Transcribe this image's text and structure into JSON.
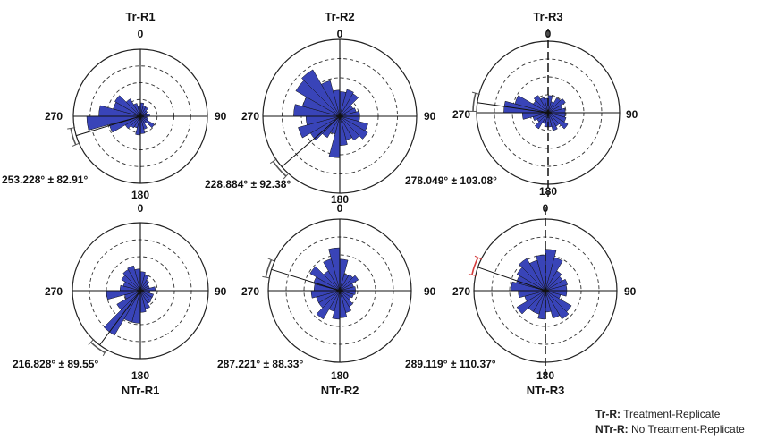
{
  "chart_data": [
    {
      "type": "rose",
      "title": "Tr-R1",
      "direction_labels": [
        "0",
        "90",
        "180",
        "270"
      ],
      "mean_label": "253.228° ± 82.91°",
      "mean_direction_deg": 253.228,
      "ci_deg": 82.91,
      "rmax": 5,
      "bin_width_deg": 15,
      "bin_starts_deg": [
        0,
        15,
        30,
        45,
        60,
        75,
        90,
        105,
        120,
        135,
        150,
        165,
        180,
        195,
        210,
        225,
        240,
        255,
        270,
        285,
        300,
        315,
        330,
        345
      ],
      "values": [
        1.0,
        0.8,
        0.8,
        0.6,
        0.5,
        0.7,
        0.5,
        0.6,
        1.2,
        0.6,
        1.0,
        1.3,
        1.4,
        0.9,
        1.0,
        1.3,
        2.4,
        4.0,
        3.1,
        2.1,
        2.2,
        1.5,
        1.0,
        0.8
      ]
    },
    {
      "type": "rose",
      "title": "Tr-R2",
      "direction_labels": [
        "0",
        "90",
        "180",
        "270"
      ],
      "mean_label": "228.884° ± 92.38°",
      "mean_direction_deg": 228.884,
      "ci_deg": 92.38,
      "rmax": 5,
      "bin_width_deg": 15,
      "bin_starts_deg": [
        0,
        15,
        30,
        45,
        60,
        75,
        90,
        105,
        120,
        135,
        150,
        165,
        180,
        195,
        210,
        225,
        240,
        255,
        270,
        285,
        300,
        315,
        330,
        345
      ],
      "values": [
        1.6,
        1.8,
        1.7,
        1.0,
        1.1,
        1.3,
        1.3,
        1.9,
        2.1,
        1.8,
        1.6,
        1.9,
        2.7,
        1.2,
        1.6,
        2.2,
        2.8,
        2.2,
        3.0,
        2.5,
        3.3,
        3.5,
        2.4,
        1.7
      ]
    },
    {
      "type": "rose",
      "title": "Tr-R3",
      "direction_labels": [
        "0",
        "90",
        "180",
        "270"
      ],
      "mean_label": "278.049° ± 103.08°",
      "mean_direction_deg": 278.049,
      "ci_deg": 103.08,
      "rmax": 5,
      "bin_width_deg": 15,
      "bin_starts_deg": [
        0,
        15,
        30,
        45,
        60,
        75,
        90,
        105,
        120,
        135,
        150,
        165,
        180,
        195,
        210,
        225,
        240,
        255,
        270,
        285,
        300,
        315,
        330,
        345
      ],
      "values": [
        1.2,
        0.8,
        1.2,
        1.4,
        1.0,
        1.2,
        1.2,
        1.3,
        1.6,
        1.1,
        1.3,
        1.0,
        1.0,
        0.8,
        1.3,
        0.9,
        1.1,
        1.8,
        3.1,
        2.4,
        1.2,
        1.4,
        1.1,
        1.0
      ]
    },
    {
      "type": "rose",
      "title": "NTr-R1",
      "direction_labels": [
        "0",
        "90",
        "180",
        "270"
      ],
      "mean_label": "216.828° ± 89.55°",
      "mean_direction_deg": 216.828,
      "ci_deg": 89.55,
      "rmax": 5,
      "bin_width_deg": 15,
      "bin_starts_deg": [
        0,
        15,
        30,
        45,
        60,
        75,
        90,
        105,
        120,
        135,
        150,
        165,
        180,
        195,
        210,
        225,
        240,
        255,
        270,
        285,
        300,
        315,
        330,
        345
      ],
      "values": [
        1.4,
        1.2,
        0.9,
        0.7,
        0.7,
        1.1,
        0.7,
        1.0,
        1.0,
        1.1,
        1.4,
        1.6,
        2.4,
        2.4,
        3.8,
        2.0,
        1.2,
        2.5,
        1.5,
        1.3,
        1.6,
        1.8,
        1.9,
        1.6
      ]
    },
    {
      "type": "rose",
      "title": "NTr-R2",
      "direction_labels": [
        "0",
        "90",
        "180",
        "270"
      ],
      "mean_label": "287.221° ± 88.33°",
      "mean_direction_deg": 287.221,
      "ci_deg": 88.33,
      "rmax": 5,
      "bin_width_deg": 15,
      "bin_starts_deg": [
        0,
        15,
        30,
        45,
        60,
        75,
        90,
        105,
        120,
        135,
        150,
        165,
        180,
        195,
        210,
        225,
        240,
        255,
        270,
        285,
        300,
        315,
        330,
        345
      ],
      "values": [
        2.2,
        1.2,
        1.3,
        1.5,
        1.0,
        1.1,
        1.1,
        1.0,
        0.9,
        1.3,
        1.6,
        1.9,
        2.0,
        1.5,
        2.3,
        1.7,
        1.7,
        2.0,
        1.8,
        1.9,
        2.4,
        1.6,
        2.3,
        3.0
      ]
    },
    {
      "type": "rose",
      "title": "NTr-R3",
      "direction_labels": [
        "0",
        "90",
        "180",
        "270"
      ],
      "mean_label": "289.119° ± 110.37°",
      "mean_direction_deg": 289.119,
      "ci_deg": 110.37,
      "rmax": 5,
      "bin_width_deg": 15,
      "bin_starts_deg": [
        0,
        15,
        30,
        45,
        60,
        75,
        90,
        105,
        120,
        135,
        150,
        165,
        180,
        195,
        210,
        225,
        240,
        255,
        270,
        285,
        300,
        315,
        330,
        345
      ],
      "values": [
        2.9,
        2.4,
        1.6,
        1.4,
        1.6,
        1.5,
        1.5,
        1.1,
        2.1,
        2.3,
        2.0,
        1.5,
        2.0,
        1.7,
        1.7,
        2.3,
        1.5,
        1.9,
        2.4,
        2.1,
        2.3,
        2.6,
        2.2,
        2.5
      ]
    }
  ],
  "legend": {
    "items": [
      {
        "key": "Tr-R:",
        "text": "Treatment-Replicate"
      },
      {
        "key": "NTr-R:",
        "text": "No Treatment-Replicate"
      }
    ]
  },
  "colors": {
    "bar_fill": "#3944b8",
    "bar_stroke": "#111111",
    "ci_arc_default": "#555555",
    "ci_arc_ntr_r3": "#d43c3c"
  }
}
